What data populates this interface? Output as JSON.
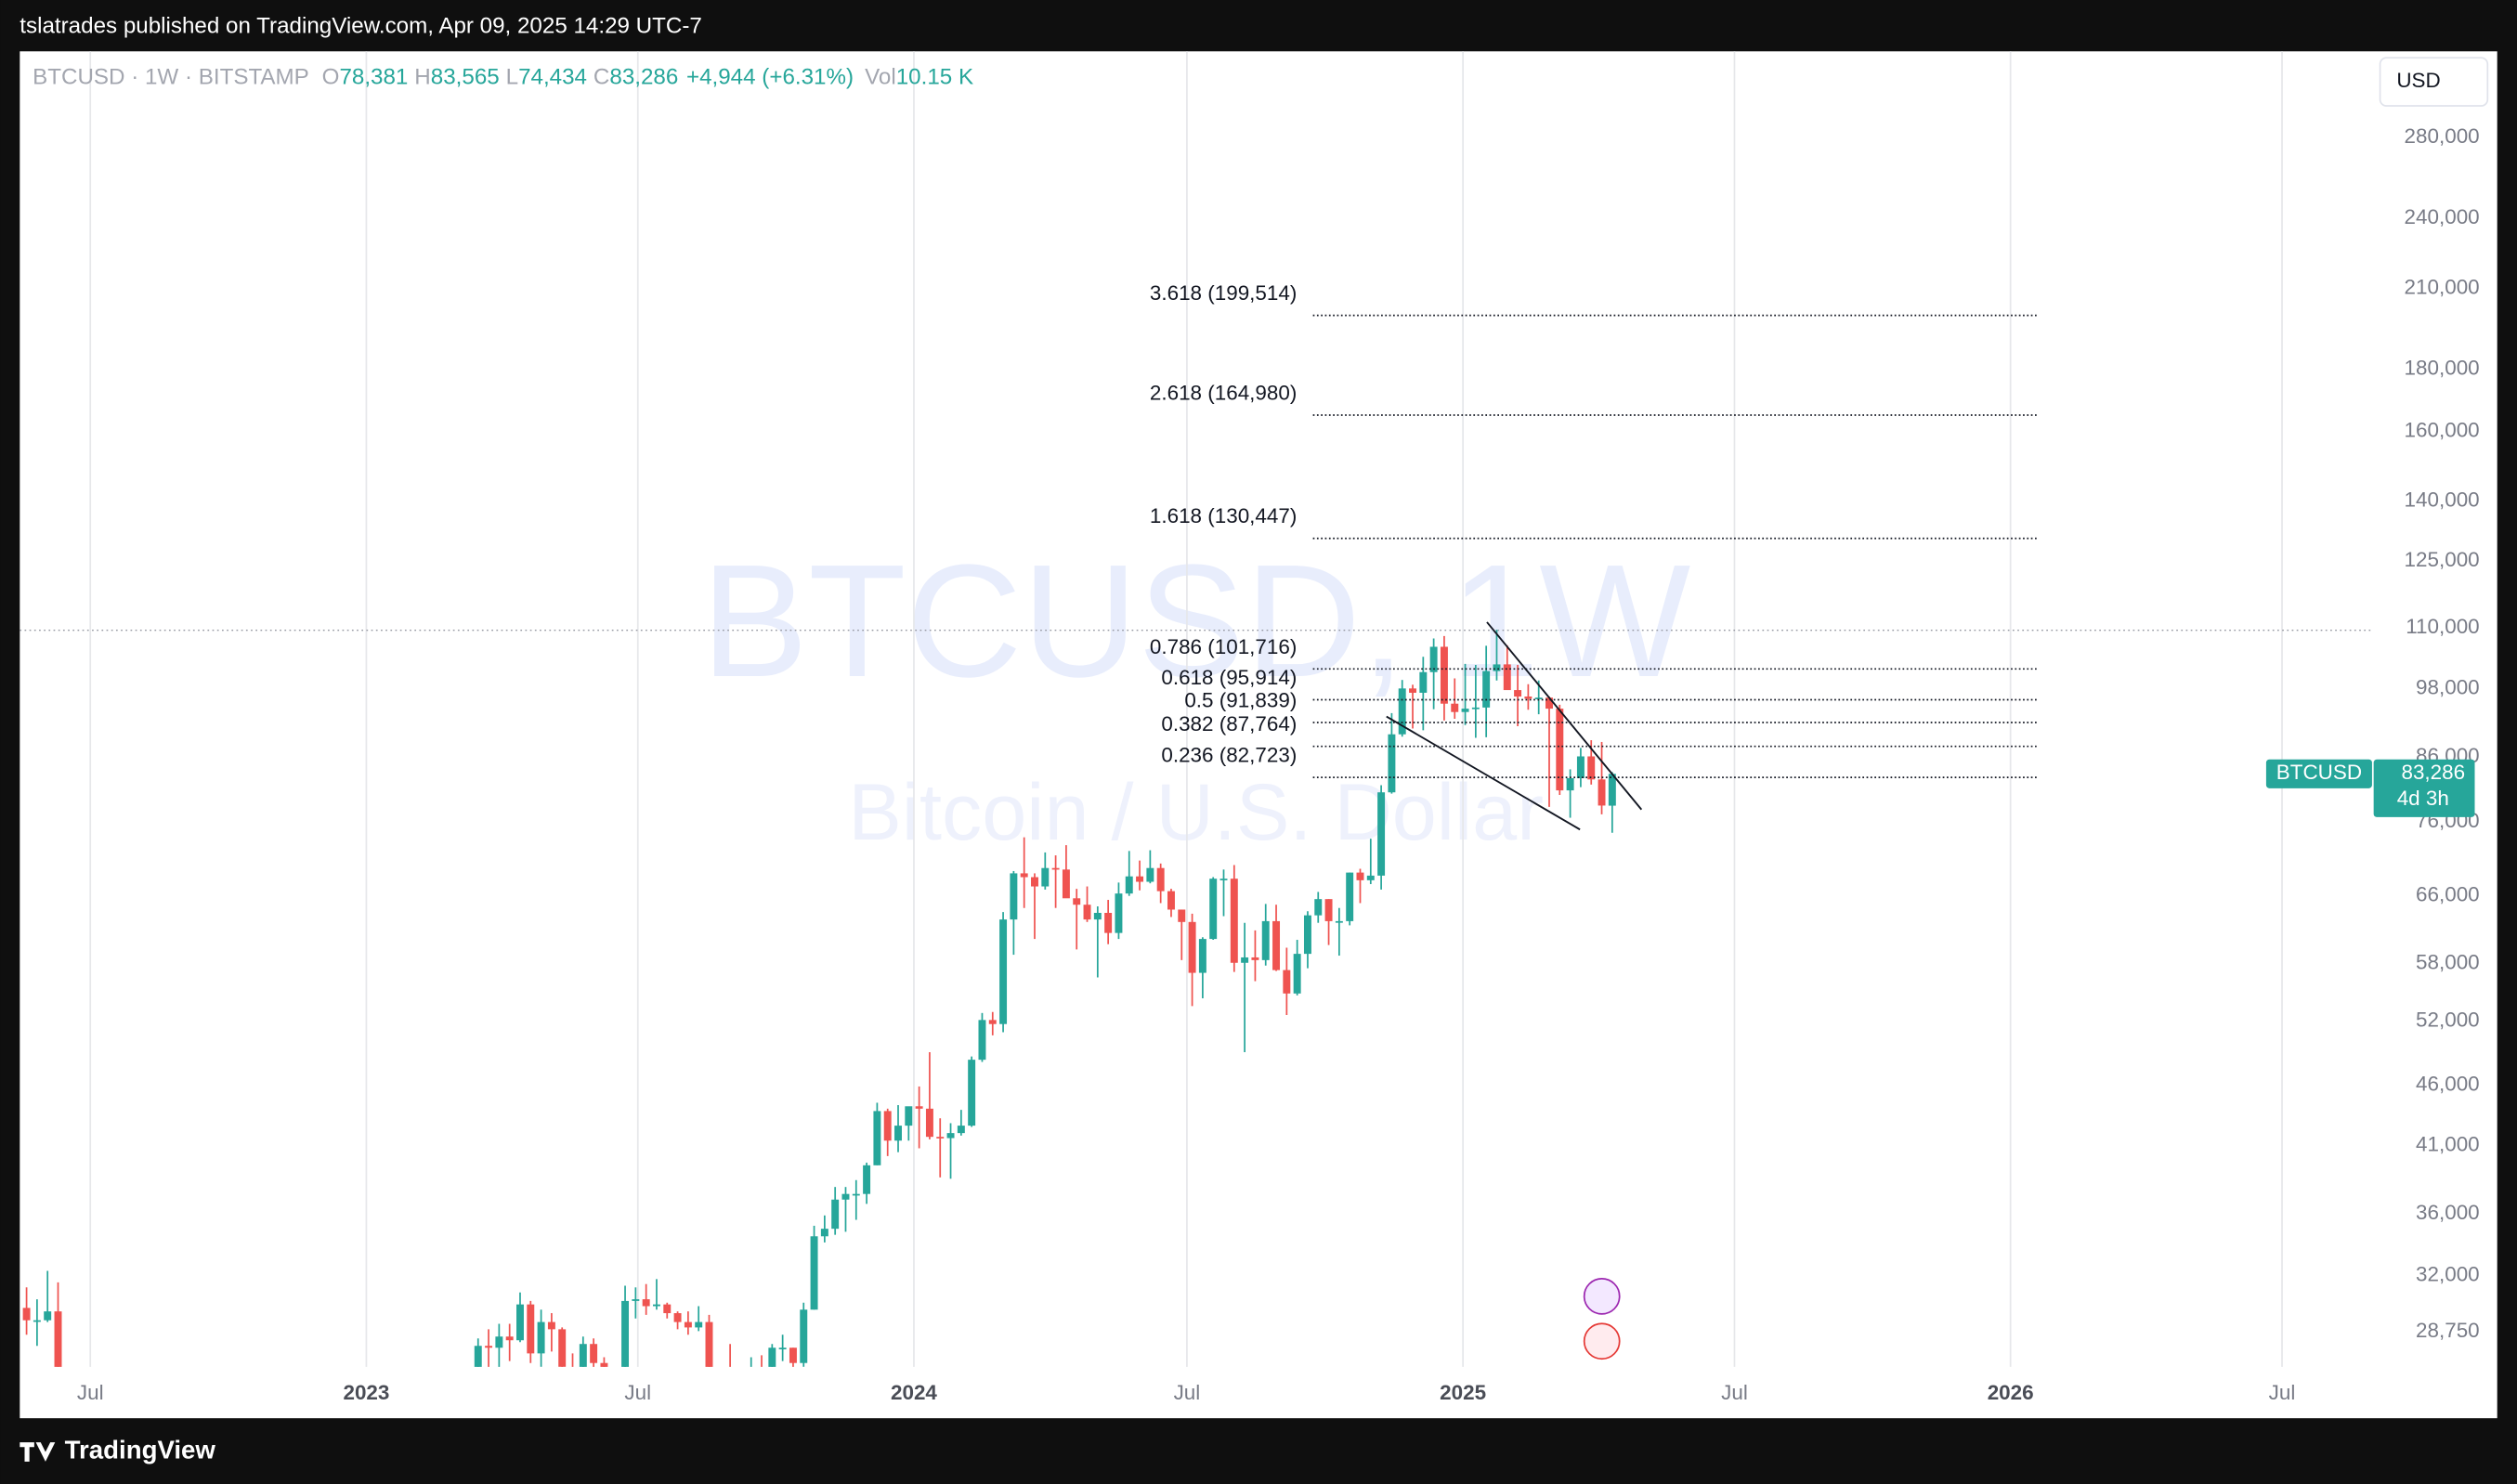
{
  "header": {
    "text": "tslatrades published on TradingView.com, Apr 09, 2025 14:29 UTC-7"
  },
  "footer": {
    "brand": "TradingView"
  },
  "chart_data": {
    "type": "candlestick",
    "legend": {
      "symbol": "BTCUSD · 1W · BITSTAMP",
      "items": [
        {
          "key": "O",
          "value": "78,381"
        },
        {
          "key": "H",
          "value": "83,565"
        },
        {
          "key": "L",
          "value": "74,434"
        },
        {
          "key": "C",
          "value": "83,286"
        }
      ],
      "change": "+4,944 (+6.31%)",
      "vol_key": "Vol",
      "vol": "10.15 K"
    },
    "watermark": {
      "title": "BTCUSD, 1W",
      "subtitle": "Bitcoin / U.S. Dollar"
    },
    "currency": "USD",
    "up_color": "#26a69a",
    "down_color": "#ef5350",
    "log_scale": true,
    "grid": true,
    "xlim": [
      "2022-05-15",
      "2026-08-30"
    ],
    "ylim": [
      26900,
      330000
    ],
    "xticks": [
      {
        "value": "2022-07-01",
        "label": "Jul"
      },
      {
        "value": "2023-01-01",
        "label": "2023"
      },
      {
        "value": "2023-07-01",
        "label": "Jul"
      },
      {
        "value": "2024-01-01",
        "label": "2024"
      },
      {
        "value": "2024-07-01",
        "label": "Jul"
      },
      {
        "value": "2025-01-01",
        "label": "2025"
      },
      {
        "value": "2025-07-01",
        "label": "Jul"
      },
      {
        "value": "2026-01-01",
        "label": "2026"
      },
      {
        "value": "2026-07-01",
        "label": "Jul"
      }
    ],
    "yticks": [
      {
        "value": 280000,
        "label": "280,000"
      },
      {
        "value": 240000,
        "label": "240,000"
      },
      {
        "value": 210000,
        "label": "210,000"
      },
      {
        "value": 180000,
        "label": "180,000"
      },
      {
        "value": 160000,
        "label": "160,000"
      },
      {
        "value": 140000,
        "label": "140,000"
      },
      {
        "value": 125000,
        "label": "125,000"
      },
      {
        "value": 110000,
        "label": "110,000"
      },
      {
        "value": 98000,
        "label": "98,000"
      },
      {
        "value": 86000,
        "label": "86,000"
      },
      {
        "value": 76000,
        "label": "76,000"
      },
      {
        "value": 66000,
        "label": "66,000"
      },
      {
        "value": 58000,
        "label": "58,000"
      },
      {
        "value": 52000,
        "label": "52,000"
      },
      {
        "value": 46000,
        "label": "46,000"
      },
      {
        "value": 41000,
        "label": "41,000"
      },
      {
        "value": 36000,
        "label": "36,000"
      },
      {
        "value": 32000,
        "label": "32,000"
      },
      {
        "value": 28750,
        "label": "28,750"
      }
    ],
    "last_price": {
      "name": "BTCUSD",
      "value": 83286,
      "label": "83,286",
      "countdown": "4d 3h"
    },
    "horizontal_line": 109500,
    "fib_range": [
      "2024-09-23",
      "2026-01-19"
    ],
    "fib_levels": [
      {
        "label": "3.618 (199,514)",
        "price": 199514
      },
      {
        "label": "2.618 (164,980)",
        "price": 164980
      },
      {
        "label": "1.618 (130,447)",
        "price": 130447
      },
      {
        "label": "0.786 (101,716)",
        "price": 101716
      },
      {
        "label": "0.618 (95,914)",
        "price": 95914
      },
      {
        "label": "0.5 (91,839)",
        "price": 91839
      },
      {
        "label": "0.382 (87,764)",
        "price": 87764
      },
      {
        "label": "0.236 (82,723)",
        "price": 82723
      }
    ],
    "trendlines": [
      {
        "points": [
          [
            "2025-01-17",
            111200
          ],
          [
            "2025-04-30",
            77800
          ]
        ]
      },
      {
        "points": [
          [
            "2024-11-11",
            92900
          ],
          [
            "2025-03-20",
            74900
          ]
        ]
      }
    ],
    "x": [
      "2022-05-16",
      "2022-05-23",
      "2022-05-30",
      "2022-06-06",
      "2023-03-13",
      "2023-03-20",
      "2023-03-27",
      "2023-04-03",
      "2023-04-10",
      "2023-04-17",
      "2023-04-24",
      "2023-05-01",
      "2023-05-08",
      "2023-05-15",
      "2023-05-22",
      "2023-05-29",
      "2023-06-05",
      "2023-06-12",
      "2023-06-19",
      "2023-06-26",
      "2023-07-03",
      "2023-07-10",
      "2023-07-17",
      "2023-07-24",
      "2023-07-31",
      "2023-08-07",
      "2023-08-14",
      "2023-08-21",
      "2023-08-28",
      "2023-09-04",
      "2023-09-11",
      "2023-09-18",
      "2023-09-25",
      "2023-10-02",
      "2023-10-09",
      "2023-10-16",
      "2023-10-23",
      "2023-10-30",
      "2023-11-06",
      "2023-11-13",
      "2023-11-20",
      "2023-11-27",
      "2023-12-04",
      "2023-12-11",
      "2023-12-18",
      "2023-12-25",
      "2024-01-01",
      "2024-01-08",
      "2024-01-15",
      "2024-01-22",
      "2024-01-29",
      "2024-02-05",
      "2024-02-12",
      "2024-02-19",
      "2024-02-26",
      "2024-03-04",
      "2024-03-11",
      "2024-03-18",
      "2024-03-25",
      "2024-04-01",
      "2024-04-08",
      "2024-04-15",
      "2024-04-22",
      "2024-04-29",
      "2024-05-06",
      "2024-05-13",
      "2024-05-20",
      "2024-05-27",
      "2024-06-03",
      "2024-06-10",
      "2024-06-17",
      "2024-06-24",
      "2024-07-01",
      "2024-07-08",
      "2024-07-15",
      "2024-07-22",
      "2024-07-29",
      "2024-08-05",
      "2024-08-12",
      "2024-08-19",
      "2024-08-26",
      "2024-09-02",
      "2024-09-09",
      "2024-09-16",
      "2024-09-23",
      "2024-09-30",
      "2024-10-07",
      "2024-10-14",
      "2024-10-21",
      "2024-10-28",
      "2024-11-04",
      "2024-11-11",
      "2024-11-18",
      "2024-11-25",
      "2024-12-02",
      "2024-12-09",
      "2024-12-16",
      "2024-12-23",
      "2024-12-30",
      "2025-01-06",
      "2025-01-13",
      "2025-01-20",
      "2025-01-27",
      "2025-02-03",
      "2025-02-10",
      "2025-02-17",
      "2025-02-24",
      "2025-03-03",
      "2025-03-10",
      "2025-03-17",
      "2025-03-24",
      "2025-03-31",
      "2025-04-07"
    ],
    "ohlc": [
      [
        30100,
        31300,
        28600,
        29400
      ],
      [
        29400,
        30600,
        28000,
        29400
      ],
      [
        29400,
        32300,
        29300,
        29900
      ],
      [
        29900,
        31600,
        26700,
        26600
      ],
      [
        20600,
        28400,
        19900,
        28000
      ],
      [
        28000,
        28900,
        26600,
        27900
      ],
      [
        27900,
        29200,
        26500,
        28500
      ],
      [
        28500,
        29200,
        27200,
        28300
      ],
      [
        28300,
        31000,
        28200,
        30300
      ],
      [
        30300,
        30500,
        27100,
        27600
      ],
      [
        27600,
        30000,
        26900,
        29300
      ],
      [
        29300,
        29800,
        27700,
        28900
      ],
      [
        28900,
        29000,
        25800,
        26900
      ],
      [
        26900,
        27600,
        26500,
        26800
      ],
      [
        26800,
        28500,
        25900,
        28100
      ],
      [
        28100,
        28400,
        26500,
        27100
      ],
      [
        27100,
        27400,
        25300,
        25900
      ],
      [
        25900,
        26800,
        24800,
        26300
      ],
      [
        26300,
        31400,
        26300,
        30500
      ],
      [
        30500,
        31300,
        29500,
        30600
      ],
      [
        30600,
        31500,
        29700,
        30200
      ],
      [
        30200,
        31800,
        30000,
        30300
      ],
      [
        30300,
        30400,
        29500,
        29800
      ],
      [
        29800,
        29900,
        28900,
        29300
      ],
      [
        29300,
        29900,
        28600,
        29000
      ],
      [
        29000,
        30200,
        28800,
        29300
      ],
      [
        29300,
        29700,
        25200,
        26100
      ],
      [
        26100,
        26800,
        25800,
        26000
      ],
      [
        26000,
        28100,
        25300,
        25800
      ],
      [
        25800,
        26100,
        24900,
        25800
      ],
      [
        25800,
        27400,
        24900,
        26500
      ],
      [
        26500,
        27500,
        26000,
        26300
      ],
      [
        26300,
        28100,
        26000,
        27900
      ],
      [
        27900,
        28600,
        27200,
        27900
      ],
      [
        27900,
        27900,
        26600,
        27100
      ],
      [
        27100,
        30400,
        26900,
        30000
      ],
      [
        30000,
        35200,
        30000,
        34500
      ],
      [
        34500,
        35900,
        34100,
        35000
      ],
      [
        35000,
        37900,
        34600,
        37000
      ],
      [
        37000,
        37900,
        34800,
        37400
      ],
      [
        37400,
        38400,
        35600,
        37400
      ],
      [
        37400,
        39700,
        36700,
        39500
      ],
      [
        39500,
        44500,
        39500,
        43800
      ],
      [
        43800,
        44000,
        40200,
        41400
      ],
      [
        41400,
        44300,
        40500,
        42600
      ],
      [
        42600,
        43800,
        41400,
        44200
      ],
      [
        44200,
        45900,
        40800,
        44000
      ],
      [
        44000,
        49000,
        41500,
        41700
      ],
      [
        41700,
        43200,
        38600,
        41600
      ],
      [
        41600,
        42800,
        38500,
        42000
      ],
      [
        42000,
        43900,
        41800,
        42600
      ],
      [
        42600,
        48600,
        42500,
        48300
      ],
      [
        48300,
        52800,
        48100,
        52100
      ],
      [
        52100,
        52900,
        50600,
        51700
      ],
      [
        51700,
        64000,
        50900,
        63100
      ],
      [
        63100,
        69200,
        59000,
        68900
      ],
      [
        68900,
        73800,
        64500,
        68400
      ],
      [
        68400,
        68900,
        60800,
        67200
      ],
      [
        67200,
        71700,
        66800,
        69600
      ],
      [
        69600,
        71300,
        64500,
        69400
      ],
      [
        69400,
        72700,
        66900,
        65700
      ],
      [
        65700,
        66900,
        59600,
        64900
      ],
      [
        64900,
        67200,
        62800,
        63100
      ],
      [
        63100,
        64700,
        56500,
        63900
      ],
      [
        63900,
        65500,
        60200,
        61500
      ],
      [
        61500,
        67700,
        60800,
        66300
      ],
      [
        66300,
        71900,
        66000,
        68500
      ],
      [
        68500,
        70600,
        66700,
        67800
      ],
      [
        67800,
        72000,
        67600,
        69600
      ],
      [
        69600,
        70200,
        65100,
        66600
      ],
      [
        66600,
        66900,
        63400,
        64300
      ],
      [
        64300,
        64300,
        58400,
        62800
      ],
      [
        62800,
        63800,
        53500,
        57000
      ],
      [
        57000,
        61000,
        54300,
        60800
      ],
      [
        60800,
        68400,
        60700,
        68200
      ],
      [
        68200,
        69400,
        63500,
        68200
      ],
      [
        68200,
        70000,
        57100,
        58100
      ],
      [
        58100,
        62700,
        49000,
        58700
      ],
      [
        58700,
        61800,
        56100,
        58400
      ],
      [
        58400,
        65000,
        57800,
        62900
      ],
      [
        62900,
        64900,
        57200,
        57300
      ],
      [
        57300,
        59800,
        52600,
        54800
      ],
      [
        54800,
        60700,
        54600,
        59100
      ],
      [
        59100,
        64100,
        57500,
        63600
      ],
      [
        63600,
        66500,
        62700,
        65600
      ],
      [
        65600,
        65600,
        60100,
        62900
      ],
      [
        62900,
        64500,
        58900,
        62900
      ],
      [
        62900,
        69000,
        62400,
        69000
      ],
      [
        69000,
        69500,
        65100,
        68000
      ],
      [
        68000,
        73600,
        67500,
        68600
      ],
      [
        68600,
        81500,
        66800,
        80400
      ],
      [
        80400,
        93500,
        80200,
        89800
      ],
      [
        89800,
        99600,
        89400,
        98000
      ],
      [
        98000,
        98700,
        90800,
        97200
      ],
      [
        97200,
        104100,
        90500,
        101100
      ],
      [
        101100,
        107800,
        94200,
        106100
      ],
      [
        106100,
        108300,
        92200,
        95200
      ],
      [
        95200,
        99900,
        92500,
        93700
      ],
      [
        93700,
        102700,
        91400,
        94300
      ],
      [
        94300,
        102500,
        89200,
        94500
      ],
      [
        94500,
        106300,
        89300,
        101300
      ],
      [
        101300,
        109600,
        99500,
        102600
      ],
      [
        102600,
        106400,
        97800,
        97700
      ],
      [
        97700,
        102500,
        91200,
        96500
      ],
      [
        96500,
        98800,
        94100,
        96100
      ],
      [
        96100,
        99500,
        93300,
        96300
      ],
      [
        96300,
        96500,
        78200,
        94300
      ],
      [
        94300,
        95000,
        80000,
        80700
      ],
      [
        80700,
        84000,
        76600,
        82600
      ],
      [
        82600,
        87500,
        81200,
        86100
      ],
      [
        86100,
        88800,
        81600,
        82400
      ],
      [
        82400,
        88500,
        77100,
        78400
      ],
      [
        78381,
        83565,
        74434,
        83286
      ]
    ]
  }
}
